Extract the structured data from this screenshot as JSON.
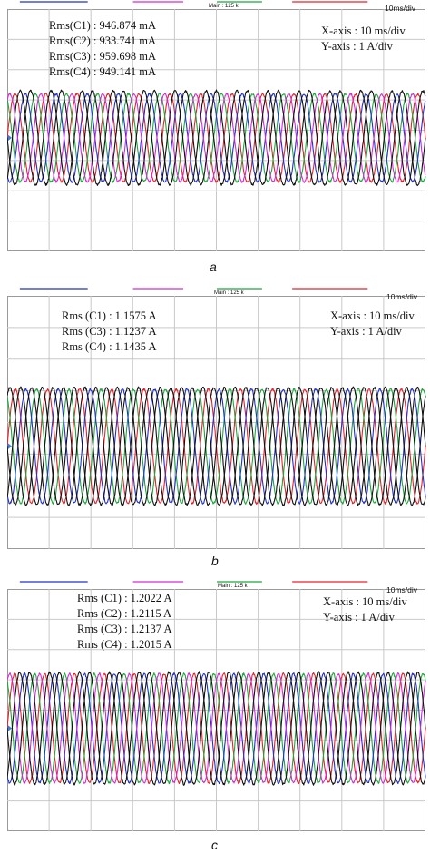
{
  "chart_data": [
    {
      "type": "line",
      "caption": "a",
      "timebase": "10ms/div",
      "main_label": "Main : 125 k",
      "rms_readouts": [
        "Rms(C1) : 946.874 mA",
        "Rms(C2) : 933.741 mA",
        "Rms(C3) : 959.698 mA",
        "Rms(C4) : 949.141 mA"
      ],
      "x_axis_text": "X-axis : 10 ms/div",
      "y_axis_text": "Y-axis : 1 A/div",
      "x_div": 10,
      "y_div": 8,
      "y_center_div": 4.25,
      "amplitude_div": 1.45,
      "cycles": 13.5,
      "series": [
        {
          "color": "#e8202a",
          "phase_deg": 0,
          "amplitude_div": 1.45
        },
        {
          "color": "#1aa83a",
          "phase_deg": 120,
          "amplitude_div": 1.45
        },
        {
          "color": "#2030c8",
          "phase_deg": 240,
          "amplitude_div": 1.45
        },
        {
          "color": "#d42ad4",
          "phase_deg": 60,
          "amplitude_div": 1.45
        },
        {
          "color": "#111111",
          "phase_deg": 180,
          "amplitude_div": 1.55
        },
        {
          "color": "#111111",
          "phase_deg": 300,
          "amplitude_div": 1.55
        }
      ]
    },
    {
      "type": "line",
      "caption": "b",
      "timebase": "10ms/div",
      "main_label": "Main : 125 k",
      "rms_readouts": [
        "Rms (C1) :  1.1575 A",
        "Rms (C3) :  1.1237 A",
        "Rms (C4) :  1.1435 A"
      ],
      "x_axis_text": "X-axis : 10 ms/div",
      "y_axis_text": "Y-axis : 1 A/div",
      "x_div": 10,
      "y_div": 8,
      "y_center_div": 4.75,
      "amplitude_div": 1.8,
      "cycles": 13,
      "series": [
        {
          "color": "#e8202a",
          "phase_deg": 0,
          "amplitude_div": 1.8
        },
        {
          "color": "#1aa83a",
          "phase_deg": 120,
          "amplitude_div": 1.8
        },
        {
          "color": "#2030c8",
          "phase_deg": 240,
          "amplitude_div": 1.8
        },
        {
          "color": "#111111",
          "phase_deg": 60,
          "amplitude_div": 1.85
        },
        {
          "color": "#111111",
          "phase_deg": 180,
          "amplitude_div": 1.85
        },
        {
          "color": "#111111",
          "phase_deg": 300,
          "amplitude_div": 1.85
        }
      ]
    },
    {
      "type": "line",
      "caption": "c",
      "timebase": "10ms/div",
      "main_label": "Main : 125 k",
      "rms_readouts": [
        "Rms (C1) :  1.2022 A",
        "Rms (C2) :  1.2115 A",
        "Rms (C3) :  1.2137 A",
        "Rms (C4) :  1.2015 A"
      ],
      "x_axis_text": "X-axis : 10 ms/div",
      "y_axis_text": "Y-axis : 1 A/div",
      "x_div": 10,
      "y_div": 8,
      "y_center_div": 4.6,
      "amplitude_div": 1.8,
      "cycles": 14,
      "series": [
        {
          "color": "#e8202a",
          "phase_deg": 0,
          "amplitude_div": 1.8
        },
        {
          "color": "#1aa83a",
          "phase_deg": 120,
          "amplitude_div": 1.8
        },
        {
          "color": "#2030c8",
          "phase_deg": 240,
          "amplitude_div": 1.8
        },
        {
          "color": "#d42ad4",
          "phase_deg": 60,
          "amplitude_div": 1.8
        },
        {
          "color": "#111111",
          "phase_deg": 180,
          "amplitude_div": 1.85
        },
        {
          "color": "#111111",
          "phase_deg": 300,
          "amplitude_div": 1.85
        }
      ]
    }
  ],
  "colors": {
    "grid": "#c9c9c9",
    "frame": "#9a9a9a",
    "trigger_marker": "#3d7fd0",
    "top_bar": [
      "#2030c8",
      "#d42ad4",
      "#1aa83a",
      "#e8202a"
    ]
  }
}
